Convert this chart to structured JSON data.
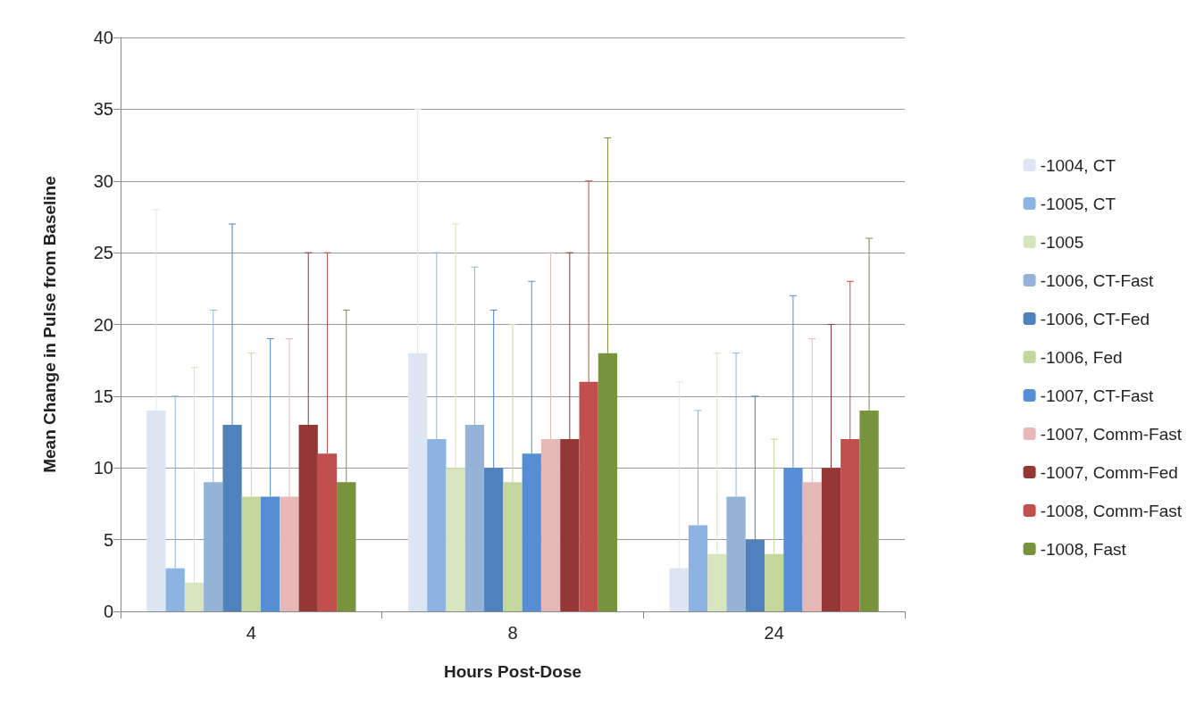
{
  "chart_data": {
    "type": "bar",
    "xlabel": "Hours Post-Dose",
    "ylabel": "Mean Change in Pulse from Baseline",
    "categories": [
      "4",
      "8",
      "24"
    ],
    "ylim": [
      0,
      40
    ],
    "yticks": [
      0,
      5,
      10,
      15,
      20,
      25,
      30,
      35,
      40
    ],
    "grid": "y",
    "legend": "right",
    "series": [
      {
        "name": "-1004, CT",
        "color": "#dce6f2",
        "values": [
          14,
          18,
          3
        ],
        "errors": [
          [
            14,
            28
          ],
          [
            18,
            35
          ],
          [
            3,
            16
          ]
        ]
      },
      {
        "name": "-1005, CT",
        "color": "#8db3e2",
        "values": [
          3,
          12,
          6
        ],
        "errors": [
          [
            3,
            15
          ],
          [
            12,
            25
          ],
          [
            6,
            14
          ]
        ]
      },
      {
        "name": "-1005",
        "color": "#d7e4bd",
        "values": [
          2,
          10,
          4
        ],
        "errors": [
          [
            2,
            17
          ],
          [
            10,
            27
          ],
          [
            4,
            18
          ]
        ]
      },
      {
        "name": "-1006, CT-Fast",
        "color": "#95b3d7",
        "values": [
          9,
          13,
          8
        ],
        "errors": [
          [
            9,
            21
          ],
          [
            13,
            24
          ],
          [
            8,
            18
          ]
        ]
      },
      {
        "name": "-1006, CT-Fed",
        "color": "#4f81bd",
        "values": [
          13,
          10,
          5
        ],
        "errors": [
          [
            13,
            27
          ],
          [
            10,
            21
          ],
          [
            5,
            15
          ]
        ]
      },
      {
        "name": "-1006, Fed",
        "color": "#c3d69b",
        "values": [
          8,
          9,
          4
        ],
        "errors": [
          [
            8,
            18
          ],
          [
            9,
            20
          ],
          [
            4,
            12
          ]
        ]
      },
      {
        "name": "-1007, CT-Fast",
        "color": "#558ed5",
        "values": [
          8,
          11,
          10
        ],
        "errors": [
          [
            8,
            19
          ],
          [
            11,
            23
          ],
          [
            10,
            22
          ]
        ]
      },
      {
        "name": "-1007, Comm-Fast",
        "color": "#e6b9b8",
        "values": [
          8,
          12,
          9
        ],
        "errors": [
          [
            8,
            19
          ],
          [
            12,
            25
          ],
          [
            9,
            19
          ]
        ]
      },
      {
        "name": "-1007, Comm-Fed",
        "color": "#953735",
        "values": [
          13,
          12,
          10
        ],
        "errors": [
          [
            13,
            25
          ],
          [
            12,
            25
          ],
          [
            10,
            20
          ]
        ]
      },
      {
        "name": "-1008, Comm-Fast",
        "color": "#c0504d",
        "values": [
          11,
          16,
          12
        ],
        "errors": [
          [
            11,
            25
          ],
          [
            16,
            30
          ],
          [
            12,
            23
          ]
        ]
      },
      {
        "name": "-1008, Fast",
        "color": "#77933c",
        "values": [
          9,
          18,
          14
        ],
        "errors": [
          [
            9,
            21
          ],
          [
            18,
            33
          ],
          [
            14,
            26
          ]
        ]
      }
    ]
  }
}
